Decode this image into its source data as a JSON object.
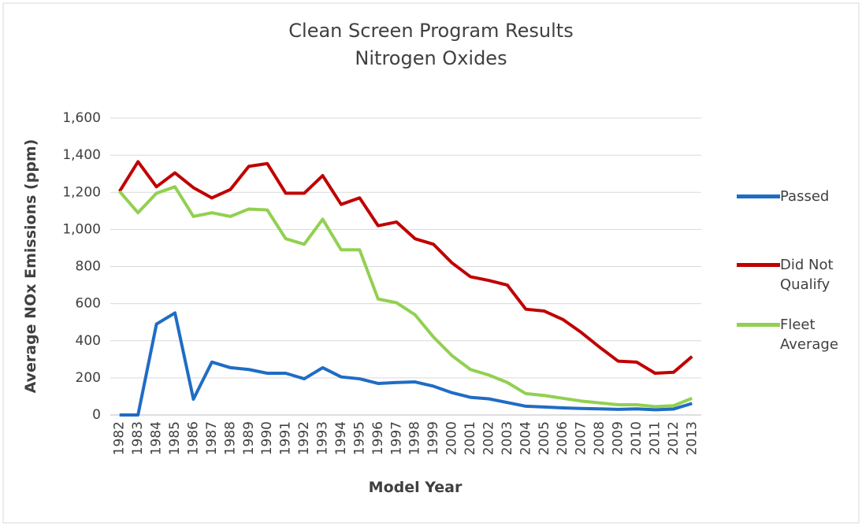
{
  "chart_data": {
    "type": "line",
    "title": "Clean Screen Program Results",
    "subtitle": "Nitrogen Oxides",
    "x_label": "Model Year",
    "y_label": "Average NOx Emissions (ppm)",
    "categories": [
      "1982",
      "1983",
      "1984",
      "1985",
      "1986",
      "1987",
      "1988",
      "1989",
      "1990",
      "1991",
      "1992",
      "1993",
      "1994",
      "1995",
      "1996",
      "1997",
      "1998",
      "1999",
      "2000",
      "2001",
      "2002",
      "2003",
      "2004",
      "2005",
      "2006",
      "2007",
      "2008",
      "2009",
      "2010",
      "2011",
      "2012",
      "2013"
    ],
    "series": [
      {
        "name": "Passed",
        "color": "#1f6cc4",
        "values": [
          0,
          0,
          490,
          550,
          85,
          285,
          255,
          245,
          225,
          225,
          195,
          255,
          205,
          195,
          170,
          175,
          178,
          155,
          120,
          95,
          87,
          67,
          47,
          43,
          38,
          35,
          33,
          30,
          33,
          28,
          32,
          62
        ]
      },
      {
        "name": "Did Not Qualify",
        "color": "#c00000",
        "values": [
          1205,
          1365,
          1230,
          1305,
          1225,
          1170,
          1215,
          1340,
          1355,
          1195,
          1195,
          1290,
          1135,
          1170,
          1020,
          1040,
          950,
          920,
          820,
          745,
          725,
          700,
          570,
          560,
          515,
          445,
          365,
          290,
          285,
          225,
          230,
          315
        ]
      },
      {
        "name": "Fleet Average",
        "color": "#92d050",
        "values": [
          1205,
          1090,
          1195,
          1230,
          1070,
          1090,
          1070,
          1110,
          1105,
          950,
          920,
          1055,
          890,
          890,
          625,
          605,
          540,
          420,
          320,
          245,
          215,
          175,
          115,
          105,
          90,
          75,
          65,
          55,
          55,
          45,
          50,
          90
        ]
      }
    ],
    "ylim": [
      0,
      1600
    ],
    "yticks": [
      0,
      {
        "value": 200,
        "label": "200"
      },
      {
        "value": 400,
        "label": "400"
      },
      {
        "value": 600,
        "label": "600"
      },
      {
        "value": 800,
        "label": "800"
      },
      {
        "value": 1000,
        "label": "1,000"
      },
      {
        "value": 1200,
        "label": "1,200"
      },
      {
        "value": 1400,
        "label": "1,400"
      },
      {
        "value": 1600,
        "label": "1,600"
      }
    ],
    "grid": true,
    "legend": "right"
  }
}
